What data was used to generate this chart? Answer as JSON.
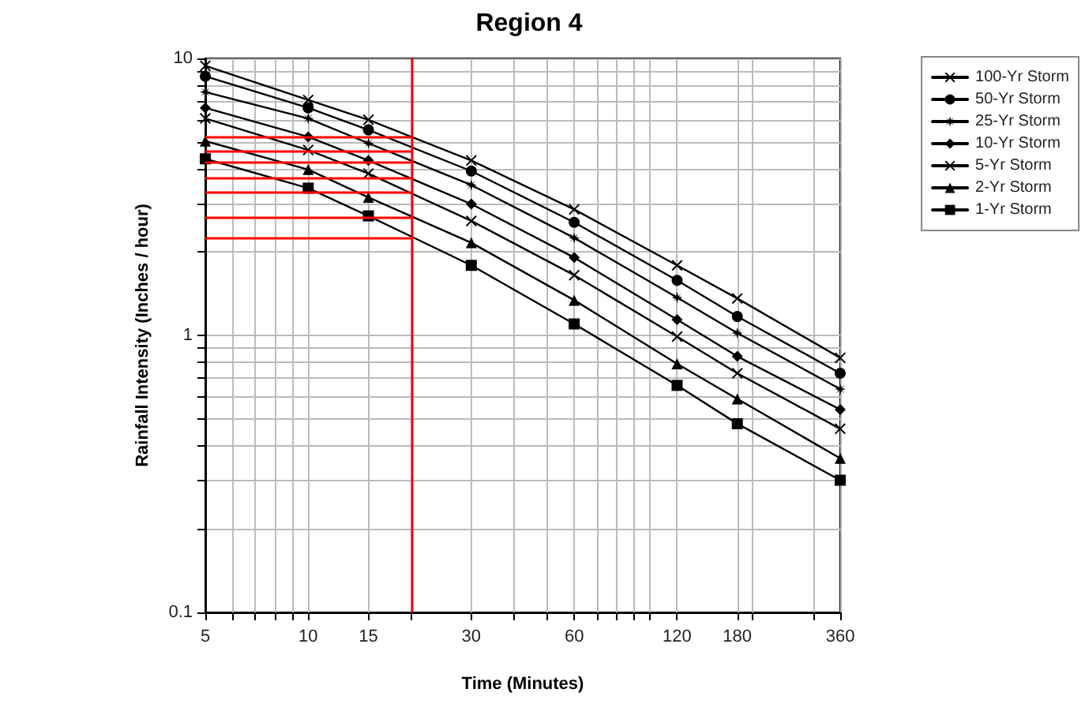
{
  "chart_data": {
    "type": "line",
    "title": "Region 4",
    "xlabel": "Time (Minutes)",
    "ylabel": "Rainfall Intensity (Inches / hour)",
    "x": [
      5,
      10,
      15,
      30,
      60,
      120,
      180,
      360
    ],
    "series": [
      {
        "name": "100-Yr Storm",
        "color": "#000000",
        "marker": "cross",
        "values": [
          9.4,
          7.08,
          6.0,
          4.28,
          2.85,
          1.79,
          1.36,
          0.83
        ]
      },
      {
        "name": "50-Yr Storm",
        "color": "#000000",
        "marker": "circle",
        "values": [
          8.62,
          6.63,
          5.52,
          3.92,
          2.56,
          1.58,
          1.17,
          0.73
        ]
      },
      {
        "name": "25-Yr Storm",
        "color": "#000000",
        "marker": "star",
        "values": [
          7.56,
          6.07,
          4.94,
          3.49,
          2.25,
          1.37,
          1.02,
          0.64
        ]
      },
      {
        "name": "10-Yr Storm",
        "color": "#000000",
        "marker": "diamond",
        "values": [
          6.63,
          5.21,
          4.28,
          2.98,
          1.91,
          1.14,
          0.84,
          0.54
        ]
      },
      {
        "name": "5-Yr Storm",
        "color": "#000000",
        "marker": "cross",
        "values": [
          6.07,
          4.67,
          3.84,
          2.59,
          1.65,
          0.99,
          0.73,
          0.46
        ]
      },
      {
        "name": "2-Yr Storm",
        "color": "#000000",
        "marker": "triangle",
        "values": [
          5.03,
          3.97,
          3.15,
          2.16,
          1.34,
          0.79,
          0.59,
          0.36
        ]
      },
      {
        "name": "1-Yr Storm",
        "color": "#000000",
        "marker": "square",
        "values": [
          4.34,
          3.4,
          2.7,
          1.79,
          1.1,
          0.66,
          0.48,
          0.3
        ]
      }
    ],
    "log": "xy",
    "xlim": [
      5,
      360
    ],
    "ylim": [
      0.1,
      10
    ],
    "xticks": [
      5,
      {
        "value": 6,
        "label": null
      },
      {
        "value": 7,
        "label": null
      },
      {
        "value": 8,
        "label": null
      },
      {
        "value": 9,
        "label": null
      },
      10,
      15,
      {
        "value": 20,
        "label": null
      },
      30,
      {
        "value": 40,
        "label": null
      },
      {
        "value": 50,
        "label": null
      },
      60,
      {
        "value": 70,
        "label": null
      },
      {
        "value": 80,
        "label": null
      },
      {
        "value": 90,
        "label": null
      },
      {
        "value": 100,
        "label": null
      },
      120,
      180,
      {
        "value": 200,
        "label": null
      },
      {
        "value": 300,
        "label": null
      },
      360
    ],
    "yticks": [
      0.1,
      {
        "value": 0.2,
        "label": null
      },
      {
        "value": 0.3,
        "label": null
      },
      {
        "value": 0.4,
        "label": null
      },
      {
        "value": 0.5,
        "label": null
      },
      {
        "value": 0.6,
        "label": null
      },
      {
        "value": 0.7,
        "label": null
      },
      {
        "value": 0.8,
        "label": null
      },
      {
        "value": 0.9,
        "label": null
      },
      1,
      {
        "value": 2,
        "label": null
      },
      {
        "value": 3,
        "label": null
      },
      {
        "value": 4,
        "label": null
      },
      {
        "value": 5,
        "label": null
      },
      {
        "value": 6,
        "label": null
      },
      {
        "value": 7,
        "label": null
      },
      {
        "value": 8,
        "label": null
      },
      {
        "value": 9,
        "label": null
      },
      10
    ],
    "ref_lines": [
      {
        "axis": "x",
        "value": 20,
        "color": "#ff0000"
      },
      {
        "axis": "y",
        "value": 5.21,
        "color": "#ff0000"
      },
      {
        "axis": "y",
        "value": 4.61,
        "color": "#ff0000"
      },
      {
        "axis": "y",
        "value": 4.22,
        "color": "#ff0000"
      },
      {
        "axis": "y",
        "value": 3.72,
        "color": "#ff0000"
      },
      {
        "axis": "y",
        "value": 3.28,
        "color": "#ff0000"
      },
      {
        "axis": "y",
        "value": 2.68,
        "color": "#ff0000"
      },
      {
        "axis": "y",
        "value": 2.25,
        "color": "#ff0000"
      }
    ],
    "grid": true,
    "legend": "top right",
    "line_style": "solid"
  }
}
